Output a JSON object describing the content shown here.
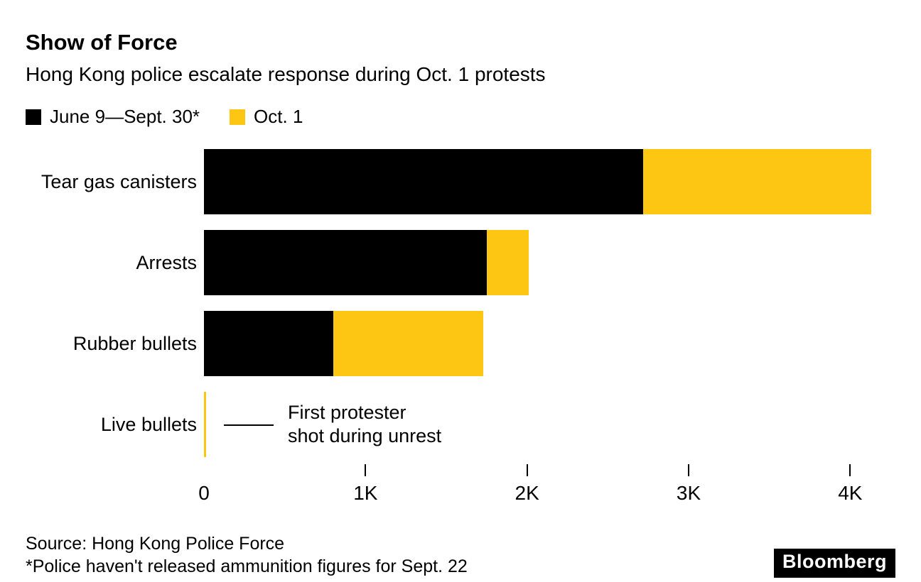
{
  "header": {
    "title": "Show of Force",
    "subtitle": "Hong Kong police escalate response during Oct. 1 protests"
  },
  "chart_data": {
    "type": "bar",
    "orientation": "horizontal",
    "stacked": true,
    "categories": [
      "Tear gas canisters",
      "Arrests",
      "Rubber bullets",
      "Live bullets"
    ],
    "series": [
      {
        "name": "June 9—Sept. 30*",
        "color": "#000000",
        "values": [
          2720,
          1750,
          800,
          0
        ]
      },
      {
        "name": "Oct. 1",
        "color": "#fdc613",
        "values": [
          1410,
          260,
          930,
          6
        ]
      }
    ],
    "xlim": [
      0,
      4280
    ],
    "x_ticks": [
      {
        "label": "0",
        "value": 0
      },
      {
        "label": "1K",
        "value": 1000
      },
      {
        "label": "2K",
        "value": 2000
      },
      {
        "label": "3K",
        "value": 3000
      },
      {
        "label": "4K",
        "value": 4000
      }
    ],
    "grid": false,
    "legend_position": "top",
    "annotation": {
      "category": "Live bullets",
      "lines": [
        "First protester",
        "shot during unrest"
      ]
    }
  },
  "footer": {
    "source": "Source: Hong Kong Police Force",
    "footnote": "*Police haven't released ammunition figures for Sept. 22",
    "brand": "Bloomberg"
  }
}
